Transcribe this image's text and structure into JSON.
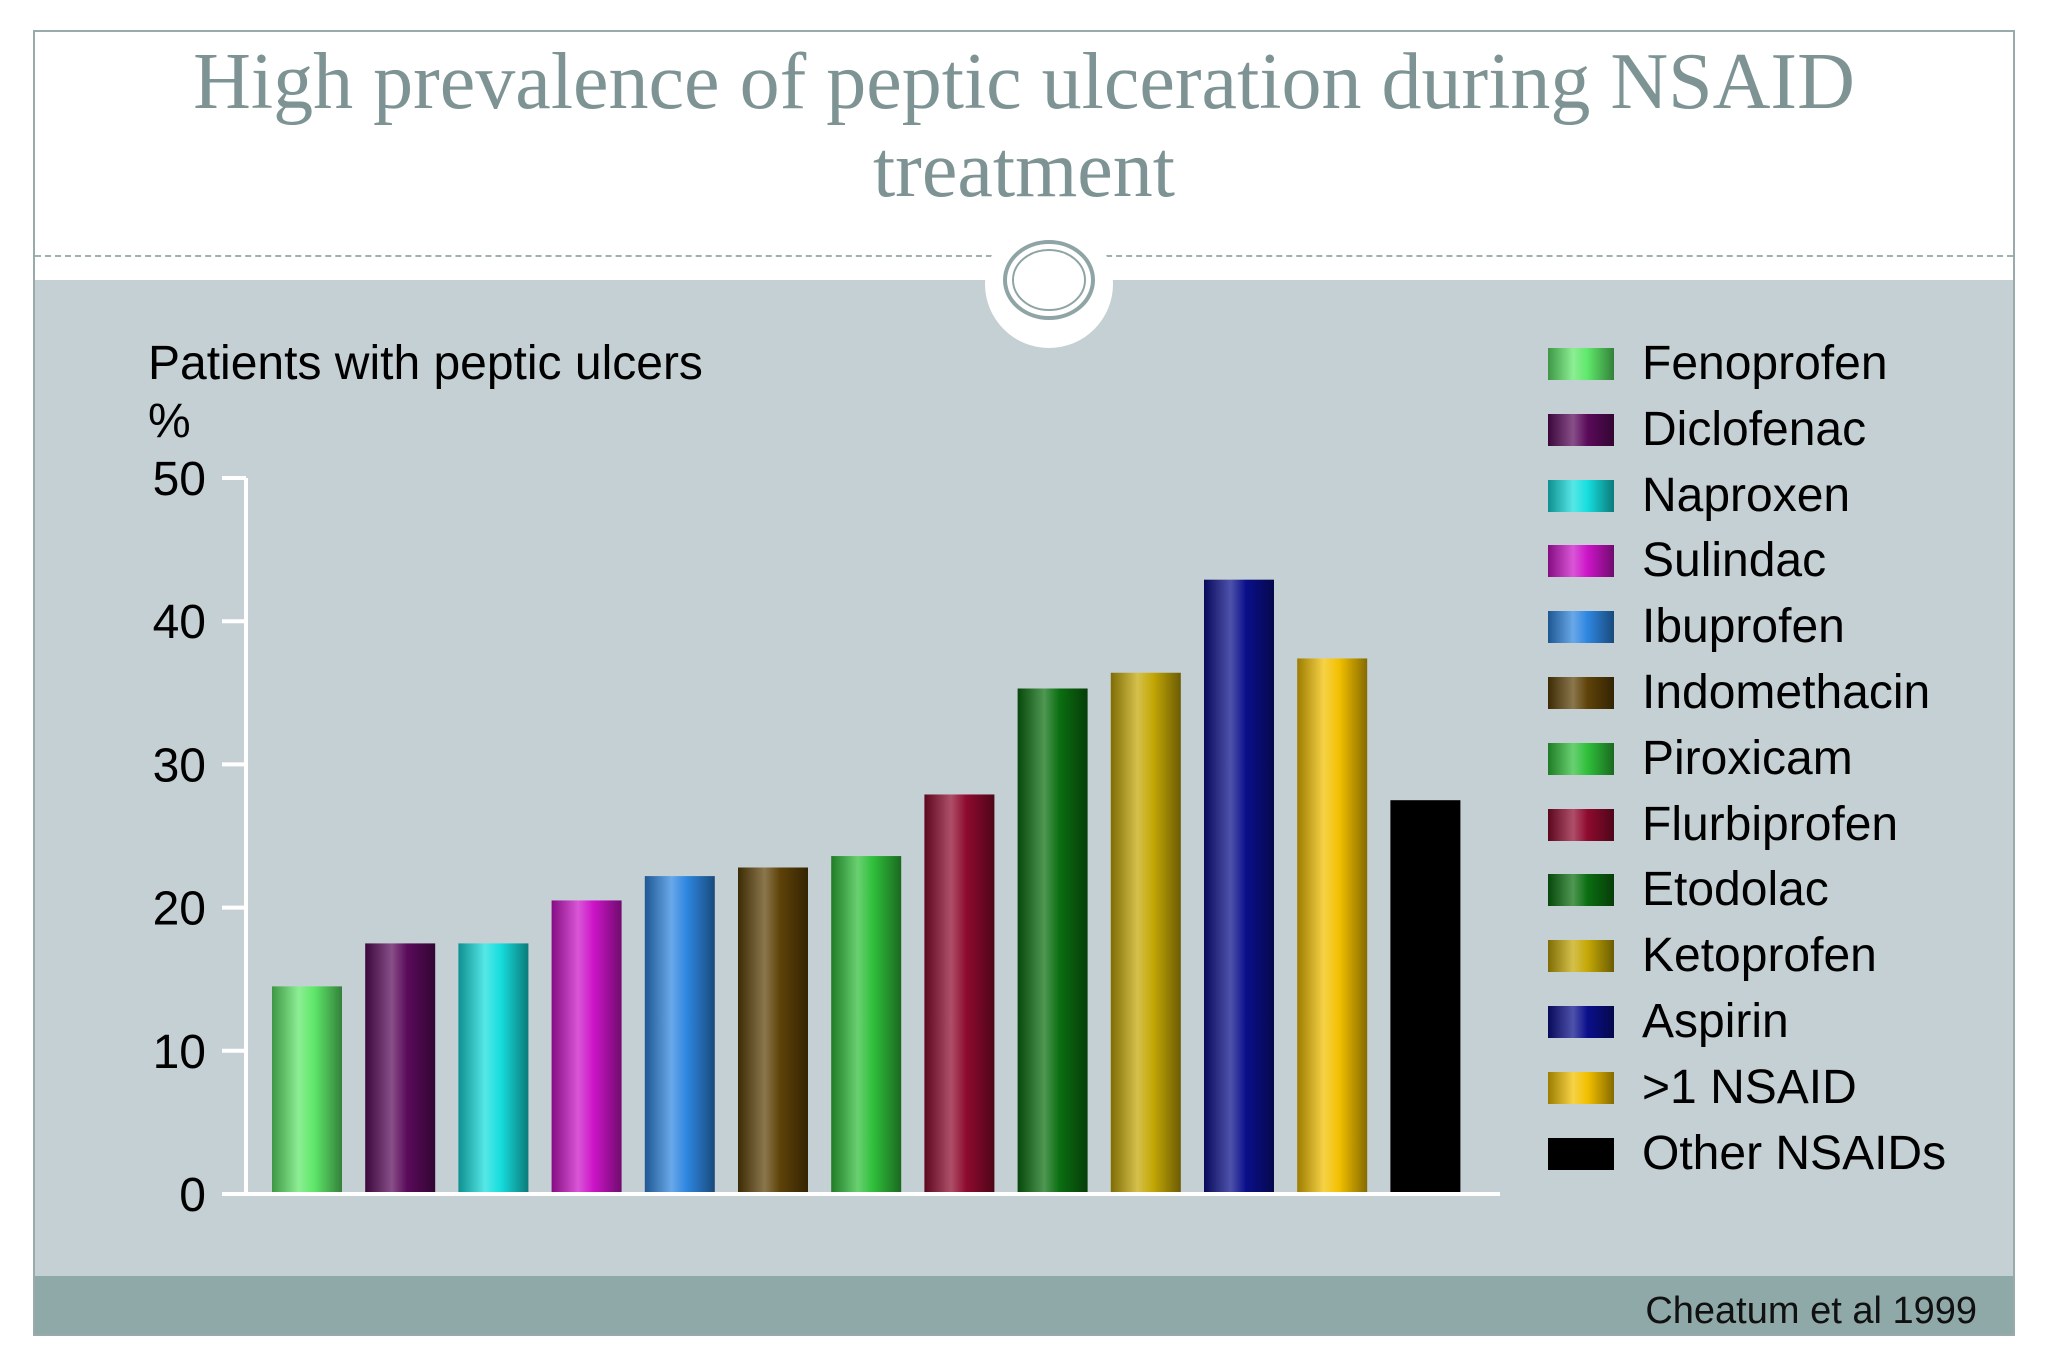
{
  "title": "High prevalence of peptic ulceration during NSAID treatment",
  "citation": "Cheatum et al 1999",
  "chart_data": {
    "type": "bar",
    "title": "High prevalence of peptic ulceration during NSAID treatment",
    "ylabel": "Patients with peptic ulcers",
    "yunit": "%",
    "xlabel": "",
    "ylim": [
      0,
      50
    ],
    "yticks": [
      0,
      10,
      20,
      30,
      40,
      50
    ],
    "grid": false,
    "legend_position": "right",
    "categories": [
      "Fenoprofen",
      "Diclofenac",
      "Naproxen",
      "Sulindac",
      "Ibuprofen",
      "Indomethacin",
      "Piroxicam",
      "Flurbiprofen",
      "Etodolac",
      "Ketoprofen",
      "Aspirin",
      ">1 NSAID",
      "Other NSAIDs"
    ],
    "values": [
      14.5,
      17.5,
      17.5,
      20.5,
      22.2,
      22.8,
      23.6,
      27.9,
      35.3,
      36.4,
      42.9,
      37.4,
      27.5
    ],
    "colors": [
      "#5fe86a",
      "#5a0a5a",
      "#16dede",
      "#cc14c8",
      "#2e86e0",
      "#5e4208",
      "#2fbf3a",
      "#8e0a2e",
      "#0a6e10",
      "#c4a806",
      "#0a0f8a",
      "#f2c000",
      "#000000"
    ]
  }
}
